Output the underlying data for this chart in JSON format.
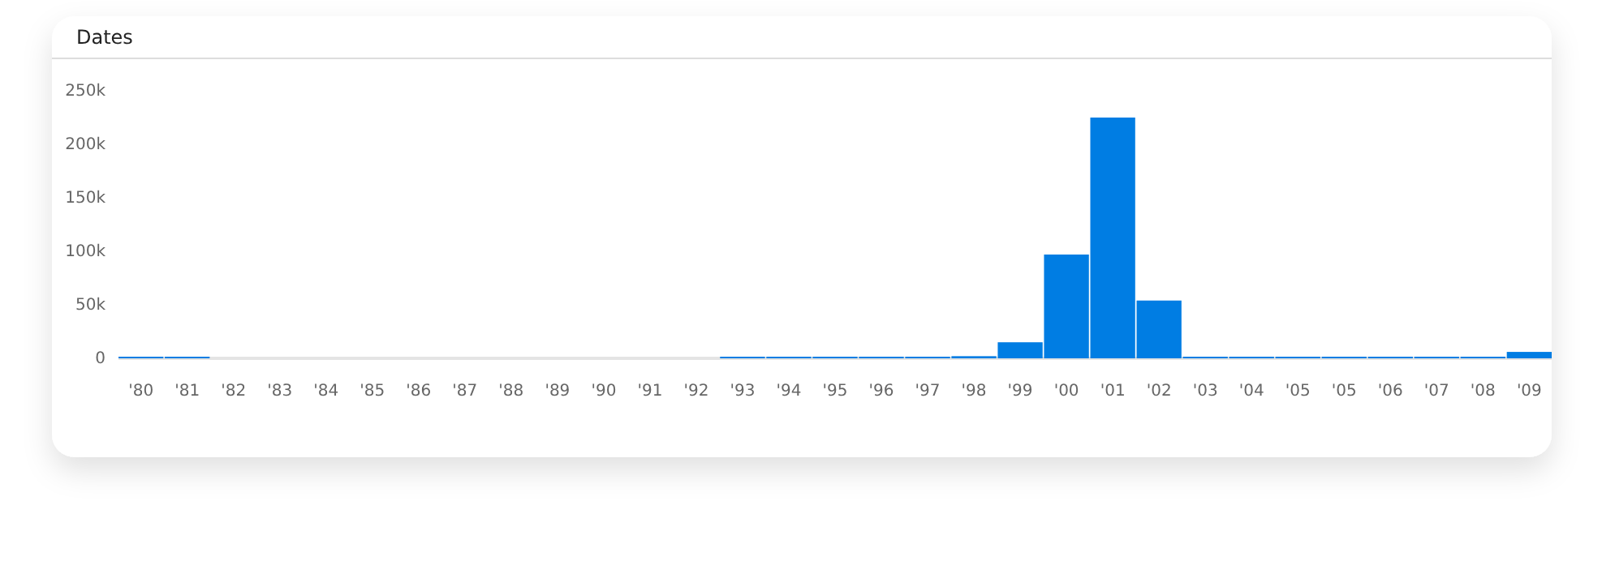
{
  "chart_data": {
    "type": "bar",
    "title": "Dates",
    "categories": [
      "'80",
      "'81",
      "'82",
      "'83",
      "'84",
      "'85",
      "'86",
      "'87",
      "'88",
      "'89",
      "'90",
      "'91",
      "'92",
      "'93",
      "'94",
      "'95",
      "'96",
      "'97",
      "'98",
      "'99",
      "'00",
      "'01",
      "'02",
      "'03",
      "'04",
      "'05",
      "'05",
      "'06",
      "'07",
      "'08",
      "'09"
    ],
    "values": [
      500,
      500,
      null,
      null,
      null,
      null,
      null,
      null,
      null,
      null,
      null,
      null,
      null,
      500,
      500,
      500,
      500,
      1000,
      2000,
      15000,
      97000,
      225000,
      54000,
      500,
      500,
      500,
      500,
      500,
      500,
      500,
      6000
    ],
    "color": "#007de3",
    "ylim": [
      0,
      250000
    ],
    "yticks": [
      {
        "value": 0,
        "label": "0"
      },
      {
        "value": 50000,
        "label": "50k"
      },
      {
        "value": 100000,
        "label": "100k"
      },
      {
        "value": 150000,
        "label": "150k"
      },
      {
        "value": 200000,
        "label": "200k"
      },
      {
        "value": 250000,
        "label": "250k"
      }
    ],
    "grid": false
  }
}
